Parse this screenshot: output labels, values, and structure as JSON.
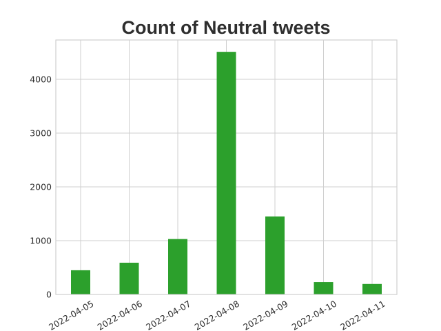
{
  "chart_data": {
    "type": "bar",
    "title": "Count of Neutral tweets",
    "xlabel": "",
    "ylabel": "",
    "categories": [
      "2022-04-05",
      "2022-04-06",
      "2022-04-07",
      "2022-04-08",
      "2022-04-09",
      "2022-04-10",
      "2022-04-11"
    ],
    "values": [
      450,
      590,
      1030,
      4510,
      1450,
      230,
      195
    ],
    "yticks": [
      0,
      1000,
      2000,
      3000,
      4000
    ],
    "ytick_labels": [
      "0",
      "1000",
      "2000",
      "3000",
      "4000"
    ],
    "ylim": [
      0,
      4730
    ],
    "grid": true,
    "legend": "none",
    "bar_color": "#2ca02c"
  }
}
